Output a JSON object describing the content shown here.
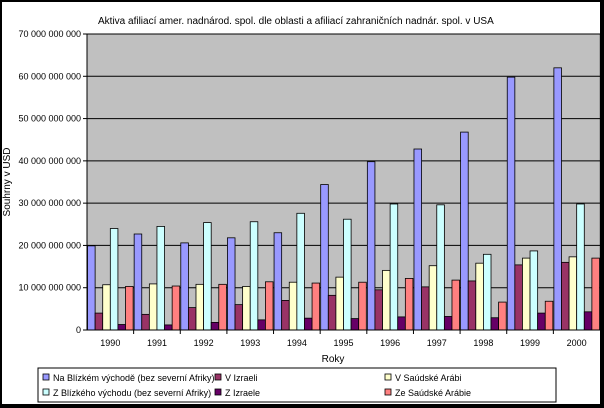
{
  "chart_data": {
    "type": "bar",
    "title": "Aktiva afiliací  amer. nadnárod. spol. dle oblasti a afiliací zahraničních nadnár. spol. v USA",
    "xlabel": "Roky",
    "ylabel": "Souhrny v USD",
    "ylim": [
      0,
      70000000000
    ],
    "yticks": [
      0,
      10000000000,
      20000000000,
      30000000000,
      40000000000,
      50000000000,
      60000000000,
      70000000000
    ],
    "ytick_labels": [
      "0",
      "10 000 000 000",
      "20 000 000 000",
      "30 000 000 000",
      "40 000 000 000",
      "50 000 000 000",
      "60 000 000 000",
      "70 000 000 000"
    ],
    "grid": "horizontal",
    "legend_position": "bottom",
    "plot_background": "#c0c0c0",
    "categories": [
      "1990",
      "1991",
      "1992",
      "1993",
      "1994",
      "1995",
      "1996",
      "1997",
      "1998",
      "1999",
      "2000"
    ],
    "series": [
      {
        "name": "Na Blízkém východě (bez severní Afriky)",
        "color": "#9999ff",
        "values": [
          19900000000,
          22700000000,
          20600000000,
          21800000000,
          23000000000,
          34400000000,
          39800000000,
          42800000000,
          46800000000,
          59800000000,
          62000000000
        ]
      },
      {
        "name": "V Izraeli",
        "color": "#993366",
        "values": [
          4000000000,
          3700000000,
          5300000000,
          6000000000,
          7000000000,
          8200000000,
          9500000000,
          10200000000,
          11600000000,
          15400000000,
          16000000000
        ]
      },
      {
        "name": "V Saúdské Arábi",
        "color": "#ffffcc",
        "values": [
          10700000000,
          10900000000,
          10800000000,
          10300000000,
          11300000000,
          12500000000,
          14100000000,
          15200000000,
          15800000000,
          17000000000,
          17300000000
        ]
      },
      {
        "name": "Z Blízkého východu (bez severní Afriky)",
        "color": "#ccffff",
        "values": [
          24000000000,
          24500000000,
          25400000000,
          25600000000,
          27600000000,
          26200000000,
          29800000000,
          29600000000,
          17900000000,
          18700000000,
          29800000000
        ]
      },
      {
        "name": "Z Izraele",
        "color": "#660066",
        "values": [
          1300000000,
          1200000000,
          1800000000,
          2400000000,
          2800000000,
          2700000000,
          3100000000,
          3200000000,
          2900000000,
          4000000000,
          4300000000
        ]
      },
      {
        "name": "Ze Saúdské Arábie",
        "color": "#ff8080",
        "values": [
          10300000000,
          10400000000,
          10800000000,
          11400000000,
          11100000000,
          11300000000,
          12200000000,
          11800000000,
          6600000000,
          6800000000,
          17000000000
        ]
      }
    ]
  }
}
